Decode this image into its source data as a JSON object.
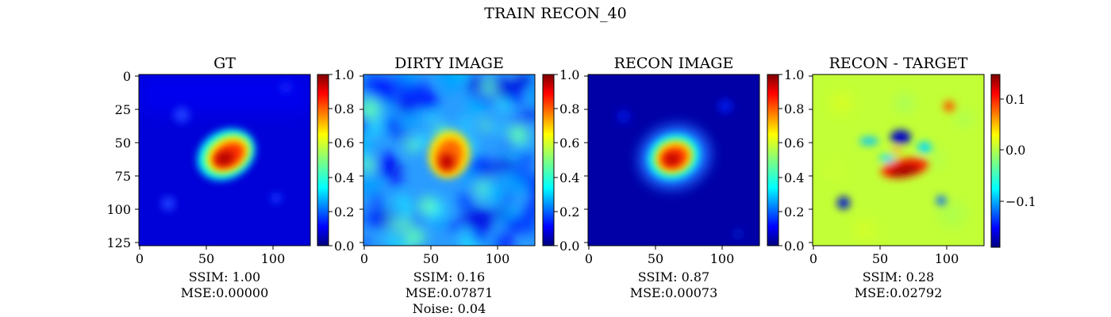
{
  "figure": {
    "suptitle": "TRAIN RECON_40"
  },
  "colors": {
    "colormap": "jet",
    "jet_stops": [
      "#00007f",
      "#0000ff",
      "#007fff",
      "#00ffff",
      "#7fff7f",
      "#ffff00",
      "#ff7f00",
      "#ff0000",
      "#7f0000"
    ]
  },
  "panels": [
    {
      "title": "GT",
      "metrics": [
        "SSIM: 1.00",
        "MSE:0.00000"
      ],
      "colorbar_ticks": [
        "0.0",
        "0.2",
        "0.4",
        "0.6",
        "0.8",
        "1.0"
      ]
    },
    {
      "title": "DIRTY IMAGE",
      "metrics": [
        "SSIM: 0.16",
        "MSE:0.07871",
        "Noise: 0.04"
      ],
      "colorbar_ticks": [
        "0.0",
        "0.2",
        "0.4",
        "0.6",
        "0.8",
        "1.0"
      ]
    },
    {
      "title": "RECON IMAGE",
      "metrics": [
        "SSIM: 0.87",
        "MSE:0.00073"
      ],
      "colorbar_ticks": [
        "0.0",
        "0.2",
        "0.4",
        "0.6",
        "0.8",
        "1.0"
      ]
    },
    {
      "title": "RECON - TARGET",
      "metrics": [
        "SSIM: 0.28",
        "MSE:0.02792"
      ],
      "colorbar_ticks": [
        "−0.1",
        "0.0",
        "0.1"
      ]
    }
  ],
  "chart_data": [
    {
      "type": "heatmap",
      "title": "GT",
      "xticks": [
        "0",
        "50",
        "100"
      ],
      "yticks": [
        "0",
        "25",
        "50",
        "75",
        "100",
        "125"
      ],
      "xlim": [
        0,
        128
      ],
      "ylim": [
        128,
        0
      ],
      "clim": [
        0.0,
        1.0
      ],
      "colorbar_ticks": [
        0.0,
        0.2,
        0.4,
        0.6,
        0.8,
        1.0
      ],
      "features": [
        {
          "kind": "peak",
          "x": 65,
          "y": 62,
          "value": 0.95
        },
        {
          "kind": "faint_blob",
          "x": 32,
          "y": 30,
          "value": 0.2
        },
        {
          "kind": "faint_blob",
          "x": 23,
          "y": 97,
          "value": 0.2
        },
        {
          "kind": "faint_blob",
          "x": 102,
          "y": 93,
          "value": 0.2
        }
      ]
    },
    {
      "type": "heatmap",
      "title": "DIRTY IMAGE",
      "xticks": [
        "0",
        "50",
        "100"
      ],
      "xlim": [
        0,
        128
      ],
      "ylim": [
        128,
        0
      ],
      "clim": [
        0.0,
        1.0
      ],
      "colorbar_ticks": [
        0.0,
        0.2,
        0.4,
        0.6,
        0.8,
        1.0
      ],
      "features": [
        {
          "kind": "peak",
          "x": 66,
          "y": 55,
          "value": 0.9
        },
        {
          "kind": "noise_background",
          "value_range": [
            0.05,
            0.5
          ]
        }
      ]
    },
    {
      "type": "heatmap",
      "title": "RECON IMAGE",
      "xticks": [
        "0",
        "50",
        "100"
      ],
      "xlim": [
        0,
        128
      ],
      "ylim": [
        128,
        0
      ],
      "clim": [
        0.0,
        1.0
      ],
      "colorbar_ticks": [
        0.0,
        0.2,
        0.4,
        0.6,
        0.8,
        1.0
      ],
      "features": [
        {
          "kind": "peak",
          "x": 63,
          "y": 63,
          "value": 0.9
        },
        {
          "kind": "faint_blob",
          "x": 32,
          "y": 30,
          "value": 0.1
        },
        {
          "kind": "faint_blob",
          "x": 102,
          "y": 23,
          "value": 0.1
        }
      ]
    },
    {
      "type": "heatmap",
      "title": "RECON - TARGET",
      "xticks": [
        "0",
        "50",
        "100"
      ],
      "xlim": [
        0,
        128
      ],
      "ylim": [
        128,
        0
      ],
      "clim": [
        -0.19,
        0.15
      ],
      "colorbar_ticks": [
        -0.1,
        0.0,
        0.1
      ],
      "features": [
        {
          "kind": "positive_arc",
          "x": 68,
          "y": 70,
          "value": 0.14
        },
        {
          "kind": "negative_blob",
          "x": 65,
          "y": 47,
          "value": -0.17
        },
        {
          "kind": "negative_blob",
          "x": 23,
          "y": 97,
          "value": -0.15
        },
        {
          "kind": "negative_blob",
          "x": 95,
          "y": 95,
          "value": -0.1
        },
        {
          "kind": "positive_blob",
          "x": 100,
          "y": 24,
          "value": 0.1
        }
      ]
    }
  ]
}
